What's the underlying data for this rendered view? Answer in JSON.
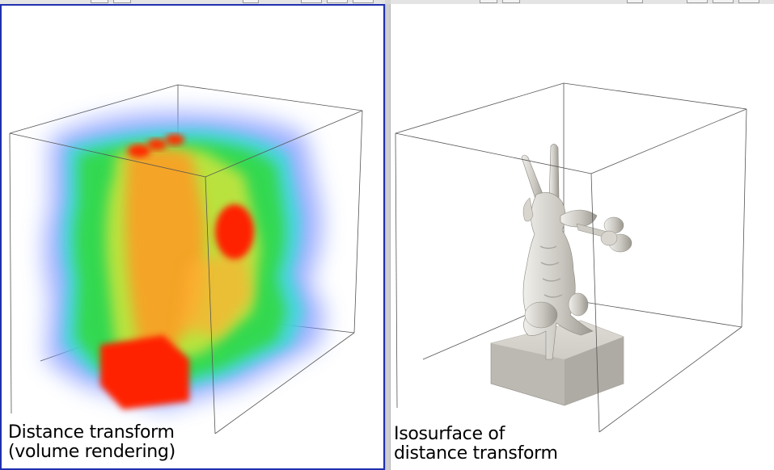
{
  "views": {
    "left": {
      "label_line1": "Distance transform",
      "label_line2": "(volume rendering)",
      "active": true,
      "active_border_color": "#1f2fb0"
    },
    "right": {
      "label_line1": "Isosurface of",
      "label_line2": "distance transform",
      "active": false
    }
  },
  "colors": {
    "background": "#ffffff",
    "outline": "#555555",
    "surface": "#d4d1cb",
    "heat_red": "#ff2a00",
    "heat_orange": "#ff8c1a",
    "heat_yellow": "#d6e63a",
    "heat_green": "#2bdc3c",
    "heat_cyan": "#3ae0d0",
    "heat_blue": "#6a88ff"
  },
  "icons": [
    "outline-box",
    "volume-rendering",
    "isosurface-rabbit"
  ]
}
